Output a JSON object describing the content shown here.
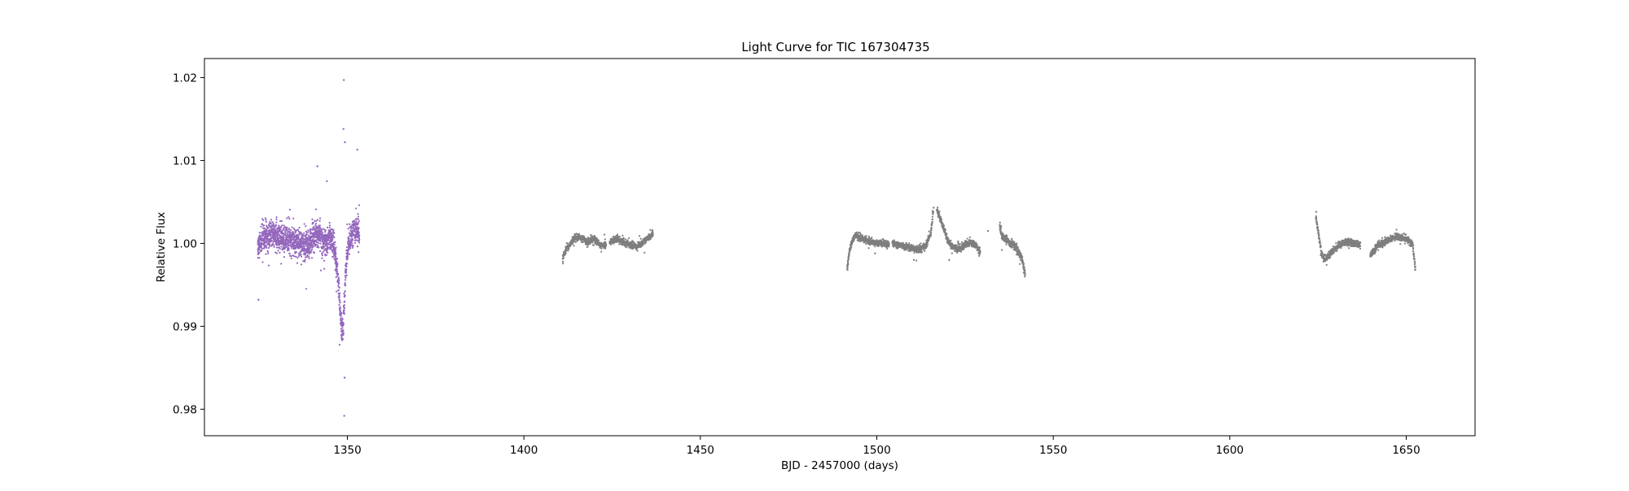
{
  "chart_data": {
    "type": "scatter",
    "title": "Light Curve for TIC 167304735",
    "xlabel": "BJD - 2457000 (days)",
    "ylabel": "Relative Flux",
    "xlim": [
      1309.5,
      1669.5
    ],
    "ylim": [
      0.9768,
      1.0223
    ],
    "x_ticks": [
      1350,
      1400,
      1450,
      1500,
      1550,
      1600,
      1650
    ],
    "y_ticks": [
      0.98,
      0.99,
      1.0,
      1.01,
      1.02
    ],
    "y_tick_labels": [
      "0.98",
      "0.99",
      "1.00",
      "1.01",
      "1.02"
    ],
    "grid": false,
    "legend": "none",
    "series": [
      {
        "color": "#9467bd",
        "marker": "point",
        "segments": [
          {
            "x0": 1324.6,
            "x1": 1353.4,
            "trend": [
              [
                1324.6,
                0.9995
              ],
              [
                1326,
                1.0008
              ],
              [
                1328,
                1.0012
              ],
              [
                1330,
                1.0008
              ],
              [
                1332,
                1.0003
              ],
              [
                1334,
                1.0005
              ],
              [
                1336,
                1.0
              ],
              [
                1338,
                0.9998
              ],
              [
                1339.5,
                0.9999
              ],
              [
                1340.5,
                1.0008
              ],
              [
                1342,
                1.0012
              ],
              [
                1343,
                1.0006
              ],
              [
                1344,
                1.0004
              ],
              [
                1345,
                1.001
              ],
              [
                1346,
                1.0
              ],
              [
                1347,
                0.9975
              ],
              [
                1347.6,
                0.9945
              ],
              [
                1348,
                0.9915
              ],
              [
                1348.4,
                0.9895
              ],
              [
                1348.8,
                0.99
              ],
              [
                1349.2,
                0.9935
              ],
              [
                1349.8,
                0.9985
              ],
              [
                1350.5,
                1.0
              ],
              [
                1351.5,
                1.0012
              ],
              [
                1352.5,
                1.0018
              ],
              [
                1353.4,
                1.001
              ]
            ],
            "scatter": 0.0016,
            "n": 1700
          }
        ],
        "highlights": [
          [
            1349.0,
            1.0197
          ],
          [
            1349.1,
            0.9792
          ],
          [
            1348.9,
            1.0138
          ],
          [
            1349.3,
            1.0122
          ],
          [
            1352.8,
            1.0113
          ],
          [
            1341.5,
            1.0093
          ],
          [
            1344.2,
            1.0075
          ],
          [
            1324.8,
            0.9932
          ],
          [
            1346.5,
            0.9985
          ],
          [
            1349.2,
            0.9838
          ]
        ]
      },
      {
        "color": "#7f7f7f",
        "marker": "point",
        "segments": [
          {
            "x0": 1411.0,
            "x1": 1423.3,
            "trend": [
              [
                1411.0,
                0.9983
              ],
              [
                1412,
                0.9993
              ],
              [
                1413,
                0.9998
              ],
              [
                1414,
                1.0005
              ],
              [
                1415.5,
                1.0008
              ],
              [
                1417,
                1.0005
              ],
              [
                1418.5,
                1.0
              ],
              [
                1419,
                1.0004
              ],
              [
                1420,
                1.0006
              ],
              [
                1421.5,
                0.9998
              ],
              [
                1423.3,
                0.9998
              ]
            ],
            "scatter": 0.0004,
            "n": 500
          },
          {
            "x0": 1424.3,
            "x1": 1436.6,
            "trend": [
              [
                1424.3,
                1.0001
              ],
              [
                1426,
                1.0006
              ],
              [
                1428,
                1.0002
              ],
              [
                1430,
                0.9998
              ],
              [
                1432,
                0.9996
              ],
              [
                1433.5,
                1.0
              ],
              [
                1435,
                1.0006
              ],
              [
                1436.6,
                1.0012
              ]
            ],
            "scatter": 0.0004,
            "n": 500
          },
          {
            "x0": 1491.6,
            "x1": 1503.5,
            "trend": [
              [
                1491.6,
                0.997
              ],
              [
                1492.2,
                0.999
              ],
              [
                1493,
                1.0003
              ],
              [
                1494,
                1.001
              ],
              [
                1496,
                1.0006
              ],
              [
                1498,
                1.0002
              ],
              [
                1500,
                1.0001
              ],
              [
                1502,
                1.0
              ],
              [
                1503.5,
                0.9999
              ]
            ],
            "scatter": 0.0004,
            "n": 500
          },
          {
            "x0": 1504.4,
            "x1": 1516.0,
            "trend": [
              [
                1504.4,
                1.0
              ],
              [
                1506,
                0.9998
              ],
              [
                1508,
                0.9996
              ],
              [
                1510,
                0.9994
              ],
              [
                1512,
                0.9993
              ],
              [
                1514,
                0.9998
              ],
              [
                1515.3,
                1.0012
              ],
              [
                1516.0,
                1.004
              ]
            ],
            "scatter": 0.0004,
            "n": 500
          },
          {
            "x0": 1517.0,
            "x1": 1529.3,
            "trend": [
              [
                1517.0,
                1.004
              ],
              [
                1518,
                1.003
              ],
              [
                1519,
                1.0018
              ],
              [
                1520,
                1.0005
              ],
              [
                1521.5,
                0.9995
              ],
              [
                1523,
                0.9993
              ],
              [
                1525,
                0.9998
              ],
              [
                1526.5,
                1.0002
              ],
              [
                1528,
                0.9998
              ],
              [
                1529.3,
                0.999
              ]
            ],
            "scatter": 0.0004,
            "n": 500
          },
          {
            "x0": 1534.8,
            "x1": 1542.0,
            "trend": [
              [
                1534.8,
                1.002
              ],
              [
                1535.6,
                1.0008
              ],
              [
                1536.8,
                1.0005
              ],
              [
                1538,
                1.0
              ],
              [
                1539.5,
                0.9995
              ],
              [
                1540.8,
                0.9985
              ],
              [
                1541.5,
                0.9975
              ],
              [
                1542.0,
                0.9965
              ]
            ],
            "scatter": 0.0005,
            "n": 300
          },
          {
            "x0": 1624.4,
            "x1": 1637.0,
            "trend": [
              [
                1624.4,
                1.0032
              ],
              [
                1625.2,
                1.001
              ],
              [
                1626,
                0.9988
              ],
              [
                1626.8,
                0.998
              ],
              [
                1628,
                0.9985
              ],
              [
                1629.5,
                0.9992
              ],
              [
                1631,
                0.9998
              ],
              [
                1633,
                1.0002
              ],
              [
                1635,
                1.0
              ],
              [
                1637.0,
                0.9998
              ]
            ],
            "scatter": 0.0004,
            "n": 500
          },
          {
            "x0": 1639.8,
            "x1": 1652.6,
            "trend": [
              [
                1639.8,
                0.9985
              ],
              [
                1640.6,
                0.999
              ],
              [
                1642,
                0.9998
              ],
              [
                1644,
                1.0002
              ],
              [
                1646,
                1.0006
              ],
              [
                1648,
                1.0008
              ],
              [
                1650,
                1.0005
              ],
              [
                1651.8,
                1.0
              ],
              [
                1652.6,
                0.997
              ]
            ],
            "scatter": 0.0004,
            "n": 500
          }
        ],
        "highlights": [
          [
            1516.1,
            1.0043
          ],
          [
            1517.2,
            1.004
          ],
          [
            1534.9,
            1.0025
          ],
          [
            1624.5,
            1.0038
          ],
          [
            1491.7,
            0.9968
          ],
          [
            1542.0,
            0.9962
          ],
          [
            1652.5,
            0.9968
          ],
          [
            1411.1,
            0.9978
          ],
          [
            1419.0,
            1.001
          ],
          [
            1531.5,
            1.0015
          ],
          [
            1510.5,
            0.998
          ],
          [
            1529.0,
            0.9985
          ],
          [
            1499.5,
            0.9988
          ],
          [
            1520.5,
            0.998
          ]
        ]
      }
    ]
  }
}
